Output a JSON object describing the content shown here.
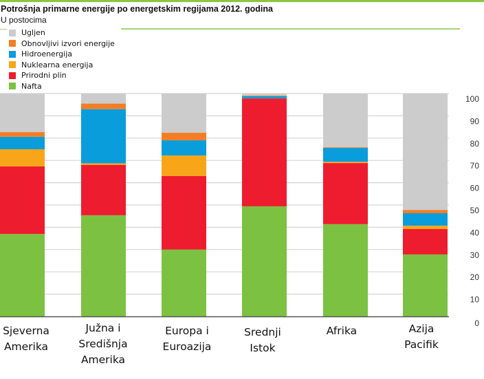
{
  "chart_data": {
    "type": "bar",
    "stacked": true,
    "title": "Potrošnja primarne energije po energetskim regijama 2012. godina",
    "subtitle": "U postocima",
    "xlabel": "",
    "ylabel": "",
    "ylim": [
      0,
      100
    ],
    "yticks": [
      "0",
      "10",
      "20",
      "30",
      "40",
      "50",
      "60",
      "70",
      "80",
      "90",
      "100"
    ],
    "grid": true,
    "legend_position": "top-left",
    "categories": [
      [
        "Sjeverna",
        "Amerika"
      ],
      [
        "Južna i",
        "Središnja",
        "Amerika"
      ],
      [
        "Europa i",
        "Euroazija"
      ],
      [
        "Srednji",
        "Istok"
      ],
      [
        "Afrika"
      ],
      [
        "Azija",
        "Pacifik"
      ]
    ],
    "series": [
      {
        "name": "Nafta",
        "color": "#7cc142",
        "values": [
          37.0,
          45.4,
          30.0,
          49.4,
          41.4,
          27.8
        ]
      },
      {
        "name": "Prirodni plin",
        "color": "#ed1c2e",
        "values": [
          30.3,
          22.6,
          33.0,
          48.4,
          27.4,
          11.4
        ]
      },
      {
        "name": "Nuklearna energija",
        "color": "#f9a51a",
        "values": [
          7.7,
          0.7,
          9.2,
          0.0,
          0.6,
          1.5
        ]
      },
      {
        "name": "Hidroenergija",
        "color": "#0a9ddb",
        "values": [
          5.6,
          24.3,
          6.8,
          1.0,
          6.2,
          5.6
        ]
      },
      {
        "name": "Obnovljivi izvori energije",
        "color": "#f37e25",
        "values": [
          2.1,
          2.5,
          3.4,
          0.3,
          0.3,
          1.5
        ]
      },
      {
        "name": "Ugljen",
        "color": "#cccccc",
        "values": [
          17.3,
          4.5,
          17.6,
          0.9,
          24.1,
          52.2
        ]
      }
    ],
    "legend_order": [
      "Ugljen",
      "Obnovljivi izvori energije",
      "Hidroenergija",
      "Nuklearna energija",
      "Prirodni plin",
      "Nafta"
    ]
  }
}
